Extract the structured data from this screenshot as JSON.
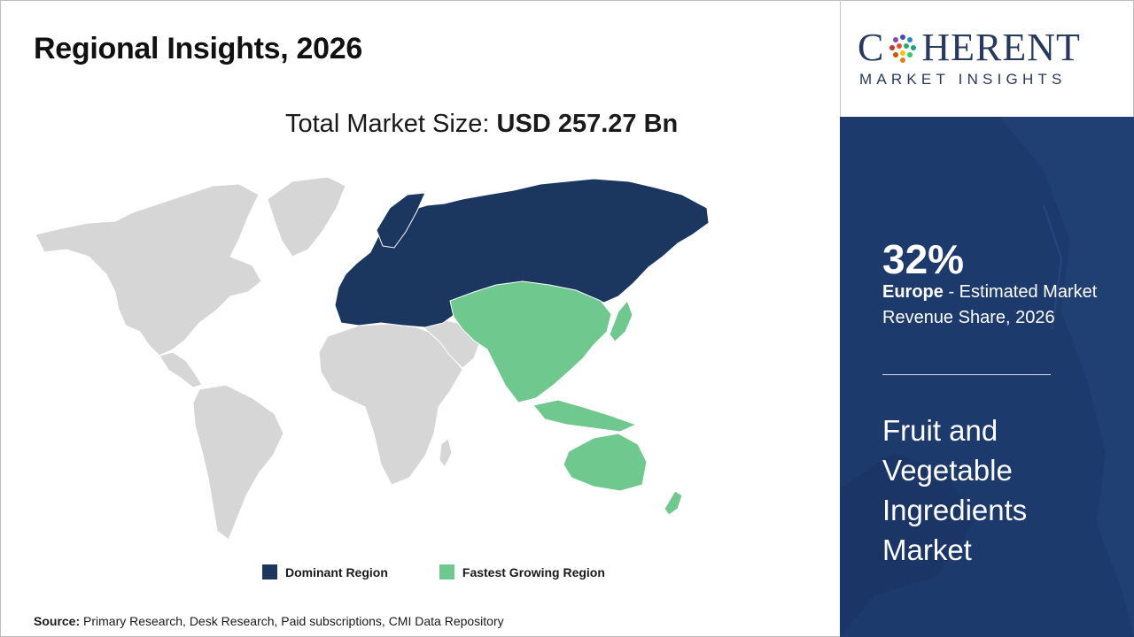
{
  "header": {
    "title": "Regional Insights, 2026",
    "market_size_label": "Total Market Size:",
    "market_size_value": "USD 257.27 Bn"
  },
  "legend": {
    "items": [
      {
        "label": "Dominant Region",
        "color": "#1b365f"
      },
      {
        "label": "Fastest Growing Region",
        "color": "#6fc98f"
      }
    ]
  },
  "map": {
    "base_color": "#d6d6d6",
    "dominant_region": "Europe",
    "fastest_growing_region": "Asia Pacific"
  },
  "source": {
    "label": "Source:",
    "text": "Primary Research, Desk Research, Paid subscriptions, CMI Data Repository"
  },
  "brand": {
    "logo_main_pre": "C",
    "logo_main_post": "HERENT",
    "logo_sub": "MARKET INSIGHTS",
    "color": "#27395f"
  },
  "panel": {
    "background": "#1d3a6d",
    "stat_value": "32%",
    "stat_region": "Europe",
    "stat_text": " - Estimated Market Revenue Share, 2026",
    "report_title": "Fruit and Vegetable Ingredients Market"
  }
}
